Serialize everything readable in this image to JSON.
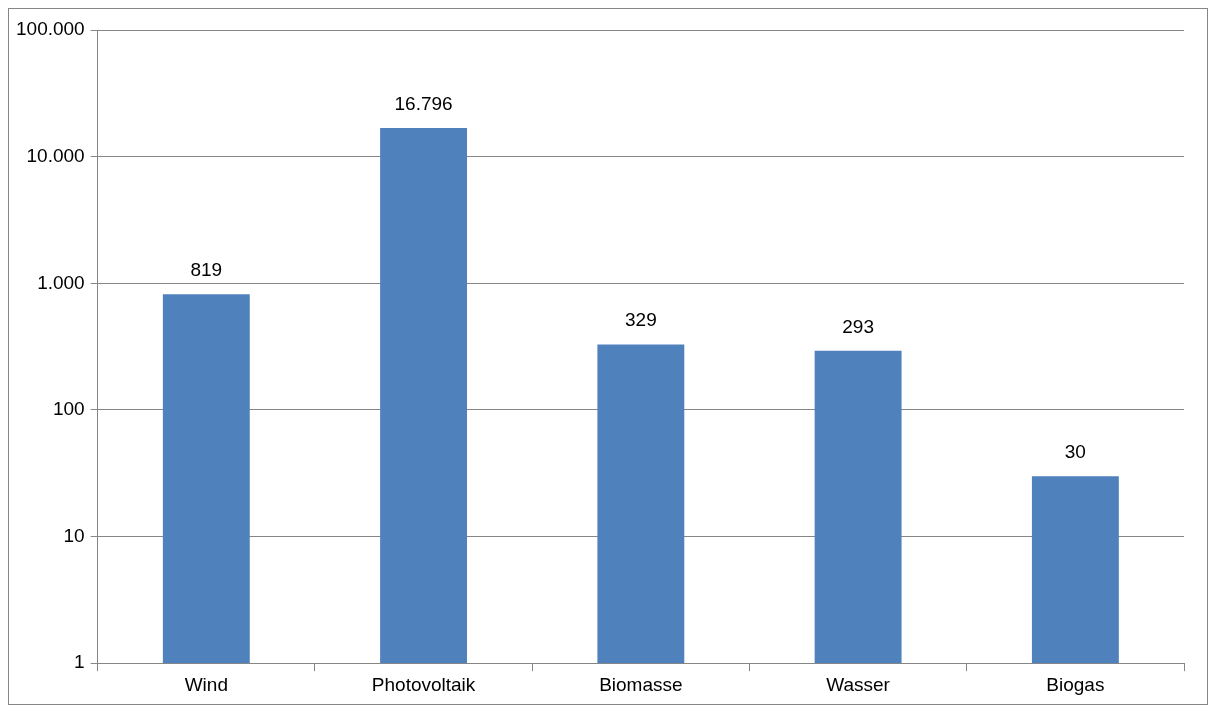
{
  "chart_data": {
    "type": "bar",
    "categories": [
      "Wind",
      "Photovoltaik",
      "Biomasse",
      "Wasser",
      "Biogas"
    ],
    "values": [
      819,
      16796,
      329,
      293,
      30
    ],
    "value_labels": [
      "819",
      "16.796",
      "329",
      "293",
      "30"
    ],
    "color": "#4f81bd",
    "log": true,
    "ylim": [
      1,
      100000
    ],
    "yticks": [
      {
        "value": 1,
        "label": "1"
      },
      {
        "value": 10,
        "label": "10"
      },
      {
        "value": 100,
        "label": "100"
      },
      {
        "value": 1000,
        "label": "1.000"
      },
      {
        "value": 10000,
        "label": "10.000"
      },
      {
        "value": 100000,
        "label": "100.000"
      }
    ],
    "grid": "y",
    "legend": false
  }
}
